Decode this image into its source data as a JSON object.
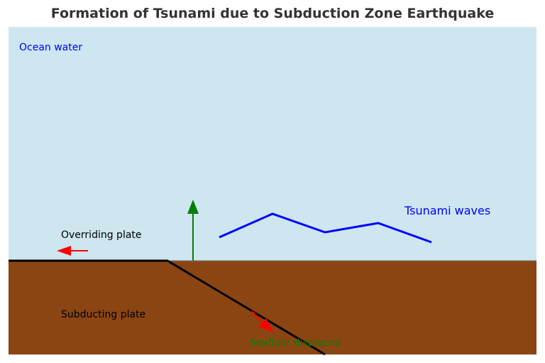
{
  "title": "Formation of Tsunami due to Subduction Zone Earthquake",
  "labels": {
    "ocean_water": "Ocean water",
    "tsunami_waves": "Tsunami waves",
    "overriding_plate": "Overriding plate",
    "subducting_plate": "Subducting plate",
    "seafloor_displaced": "Seafloor displaced"
  },
  "colors": {
    "ocean": "#cde6ef",
    "seafloor": "#8b4513",
    "wave": "#0000ff",
    "uplift_arrow": "#008000",
    "motion_arrows": "#ff0000",
    "fault_line": "#000000",
    "ocean_label": "#0000ff",
    "seafloor_label": "#008000"
  },
  "icons": {
    "uplift": "arrow-up-icon",
    "overriding_motion": "arrow-left-icon",
    "subducting_motion": "arrow-down-right-icon"
  }
}
